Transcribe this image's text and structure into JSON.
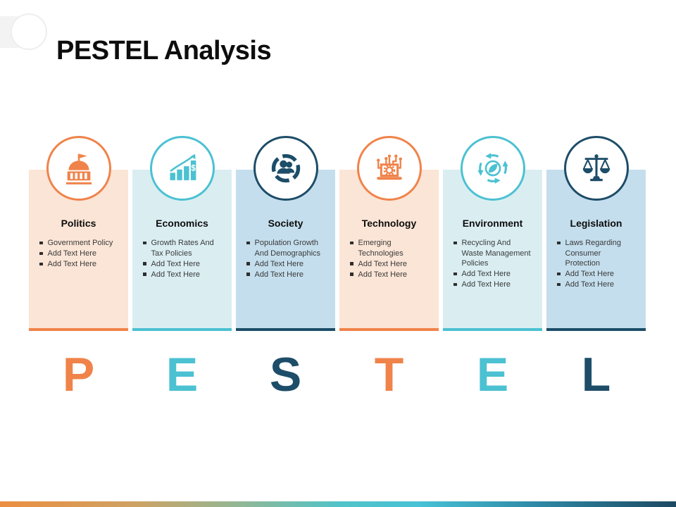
{
  "slide": {
    "title": "PESTEL Analysis",
    "cards": [
      {
        "title": "Politics",
        "icon": "government-building-icon",
        "accent": "#f0834a",
        "background": "#fbe5d6",
        "bullets": [
          "Government Policy",
          "Add Text Here",
          "Add Text Here"
        ]
      },
      {
        "title": "Economics",
        "icon": "growth-bar-chart-icon",
        "accent": "#4bc1d2",
        "background": "#daeef2",
        "bullets": [
          "Growth Rates And Tax Policies",
          "Add Text Here",
          "Add Text Here"
        ]
      },
      {
        "title": "Society",
        "icon": "society-people-icon",
        "accent": "#1d4d68",
        "background": "#c4deed",
        "bullets": [
          "Population Growth And Demographics",
          "Add Text Here",
          "Add Text Here"
        ]
      },
      {
        "title": "Technology",
        "icon": "technology-circuit-icon",
        "accent": "#f0834a",
        "background": "#fbe5d6",
        "bullets": [
          "Emerging Technologies",
          "Add Text Here",
          "Add Text Here"
        ]
      },
      {
        "title": "Environment",
        "icon": "environment-recycle-leaf-icon",
        "accent": "#4bc1d2",
        "background": "#daeef2",
        "bullets": [
          "Recycling And Waste Management Policies",
          "Add Text Here",
          "Add Text Here"
        ]
      },
      {
        "title": "Legislation",
        "icon": "justice-scales-icon",
        "accent": "#1d4d68",
        "background": "#c4deed",
        "bullets": [
          "Laws Regarding Consumer Protection",
          "Add Text Here",
          "Add Text Here"
        ]
      }
    ],
    "acronym_letters": [
      {
        "letter": "P",
        "color": "#f0834a"
      },
      {
        "letter": "E",
        "color": "#4bc1d2"
      },
      {
        "letter": "S",
        "color": "#1d4d68"
      },
      {
        "letter": "T",
        "color": "#f0834a"
      },
      {
        "letter": "E",
        "color": "#4bc1d2"
      },
      {
        "letter": "L",
        "color": "#1d4d68"
      }
    ],
    "footer_gradient_colors": [
      "#ec8e41",
      "#47c2d6",
      "#1d4962"
    ]
  }
}
